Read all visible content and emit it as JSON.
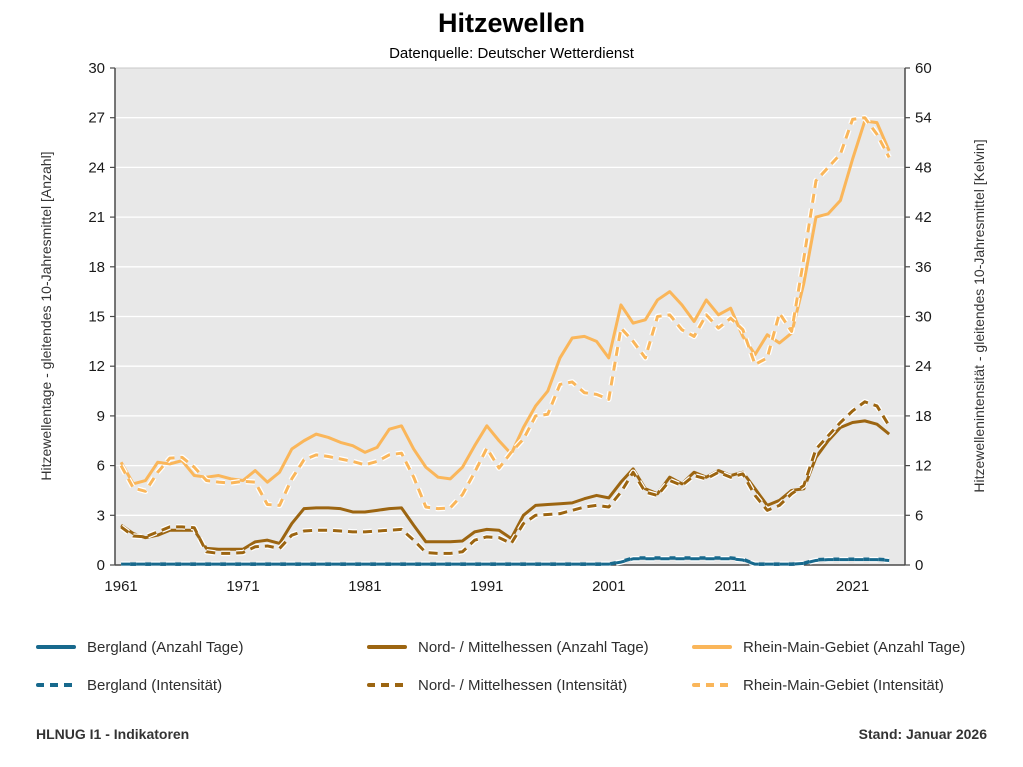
{
  "title": "Hitzewellen",
  "subtitle": "Datenquelle: Deutscher Wetterdienst",
  "footer": {
    "left": "HLNUG I1 - Indikatoren",
    "right": "Stand: Januar 2026"
  },
  "colors": {
    "bergland": "#17698d",
    "nordmittelhessen": "#9c6511",
    "rheinmain": "#fab65a",
    "plot_bg": "#e8e8e8",
    "grid": "#ffffff",
    "axis": "#4a4a4a",
    "tick_text": "#1a1a1a"
  },
  "legend": [
    {
      "label": "Bergland (Anzahl Tage)",
      "color": "bergland",
      "style": "solid"
    },
    {
      "label": "Nord- / Mittelhessen (Anzahl Tage)",
      "color": "nordmittelhessen",
      "style": "solid"
    },
    {
      "label": "Rhein-Main-Gebiet (Anzahl Tage)",
      "color": "rheinmain",
      "style": "solid"
    },
    {
      "label": "Bergland (Intensität)",
      "color": "bergland",
      "style": "dashed"
    },
    {
      "label": "Nord- / Mittelhessen (Intensität)",
      "color": "nordmittelhessen",
      "style": "dashed"
    },
    {
      "label": "Rhein-Main-Gebiet (Intensität)",
      "color": "rheinmain",
      "style": "dashed"
    }
  ],
  "chart_data": {
    "type": "line",
    "title": "Hitzewellen",
    "subtitle": "Datenquelle: Deutscher Wetterdienst",
    "grid": true,
    "legend_position": "bottom",
    "x_domain": [
      1960.5,
      2025.3
    ],
    "x_axis": {
      "ticks": [
        1961,
        1971,
        1981,
        1991,
        2001,
        2011,
        2021
      ]
    },
    "left_axis": {
      "label": "Hitzewellentage - gleitendes 10-Jahresmittel [Anzahl]",
      "min": 0,
      "max": 30,
      "step": 3,
      "ticks": [
        0,
        3,
        6,
        9,
        12,
        15,
        18,
        21,
        24,
        27,
        30
      ]
    },
    "right_axis": {
      "label": "Hitzewellenintensität - gleitendes 10-Jahresmittel [Kelvin]",
      "min": 0,
      "max": 60,
      "step": 6,
      "ticks": [
        0,
        6,
        12,
        18,
        24,
        30,
        36,
        42,
        48,
        54,
        60
      ]
    },
    "years": [
      1961,
      1962,
      1963,
      1964,
      1965,
      1966,
      1967,
      1968,
      1969,
      1970,
      1971,
      1972,
      1973,
      1974,
      1975,
      1976,
      1977,
      1978,
      1979,
      1980,
      1981,
      1982,
      1983,
      1984,
      1985,
      1986,
      1987,
      1988,
      1989,
      1990,
      1991,
      1992,
      1993,
      1994,
      1995,
      1996,
      1997,
      1998,
      1999,
      2000,
      2001,
      2002,
      2003,
      2004,
      2005,
      2006,
      2007,
      2008,
      2009,
      2010,
      2011,
      2012,
      2013,
      2014,
      2015,
      2016,
      2017,
      2018,
      2019,
      2020,
      2021,
      2022,
      2023,
      2024
    ],
    "series": [
      {
        "name": "Bergland (Anzahl Tage)",
        "axis": "left",
        "style": "solid",
        "color": "bergland",
        "width": 3.5,
        "values": [
          0.05,
          0.05,
          0.05,
          0.05,
          0.05,
          0.05,
          0.05,
          0.05,
          0.05,
          0.05,
          0.05,
          0.05,
          0.05,
          0.05,
          0.05,
          0.05,
          0.05,
          0.05,
          0.05,
          0.05,
          0.05,
          0.05,
          0.05,
          0.05,
          0.05,
          0.05,
          0.05,
          0.05,
          0.05,
          0.05,
          0.05,
          0.05,
          0.05,
          0.05,
          0.05,
          0.05,
          0.05,
          0.05,
          0.05,
          0.05,
          0.05,
          0.2,
          0.42,
          0.42,
          0.42,
          0.42,
          0.42,
          0.42,
          0.42,
          0.42,
          0.42,
          0.35,
          0.05,
          0.05,
          0.05,
          0.05,
          0.1,
          0.32,
          0.35,
          0.35,
          0.35,
          0.35,
          0.35,
          0.3
        ]
      },
      {
        "name": "Nord- / Mittelhessen (Anzahl Tage)",
        "axis": "left",
        "style": "solid",
        "color": "nordmittelhessen",
        "width": 3,
        "values": [
          2.4,
          1.9,
          1.65,
          1.8,
          2.1,
          2.1,
          2.1,
          1.0,
          0.95,
          0.95,
          0.95,
          1.4,
          1.5,
          1.3,
          2.5,
          3.4,
          3.45,
          3.45,
          3.4,
          3.2,
          3.2,
          3.3,
          3.4,
          3.45,
          2.4,
          1.4,
          1.4,
          1.4,
          1.45,
          2.0,
          2.15,
          2.1,
          1.6,
          3.0,
          3.6,
          3.65,
          3.7,
          3.75,
          4.0,
          4.2,
          4.05,
          5.0,
          5.8,
          4.6,
          4.3,
          5.3,
          4.9,
          5.6,
          5.3,
          5.7,
          5.4,
          5.6,
          4.6,
          3.6,
          3.9,
          4.5,
          4.6,
          6.5,
          7.5,
          8.3,
          8.6,
          8.7,
          8.5,
          7.9
        ]
      },
      {
        "name": "Rhein-Main-Gebiet (Anzahl Tage)",
        "axis": "left",
        "style": "solid",
        "color": "rheinmain",
        "width": 3,
        "values": [
          6.2,
          4.9,
          5.1,
          6.2,
          6.1,
          6.3,
          5.4,
          5.3,
          5.4,
          5.2,
          5.1,
          5.7,
          5.0,
          5.6,
          7.0,
          7.5,
          7.9,
          7.7,
          7.4,
          7.2,
          6.8,
          7.1,
          8.2,
          8.4,
          7.0,
          5.9,
          5.3,
          5.2,
          5.9,
          7.2,
          8.4,
          7.5,
          6.7,
          8.3,
          9.6,
          10.5,
          12.5,
          13.7,
          13.8,
          13.5,
          12.5,
          15.7,
          14.6,
          14.8,
          16.0,
          16.5,
          15.7,
          14.7,
          16.0,
          15.1,
          15.5,
          13.8,
          12.7,
          13.9,
          13.4,
          14.0,
          17.0,
          21.0,
          21.2,
          22.0,
          24.5,
          26.8,
          26.7,
          25.0
        ]
      },
      {
        "name": "Bergland (Intensität)",
        "axis": "right",
        "style": "dashed",
        "color": "bergland",
        "width": 3,
        "values": [
          0.1,
          0.1,
          0.1,
          0.1,
          0.1,
          0.1,
          0.1,
          0.1,
          0.1,
          0.1,
          0.1,
          0.1,
          0.1,
          0.1,
          0.1,
          0.1,
          0.1,
          0.1,
          0.1,
          0.1,
          0.1,
          0.1,
          0.1,
          0.1,
          0.1,
          0.1,
          0.1,
          0.1,
          0.1,
          0.1,
          0.1,
          0.1,
          0.1,
          0.1,
          0.1,
          0.1,
          0.1,
          0.1,
          0.1,
          0.1,
          0.1,
          0.35,
          0.75,
          0.75,
          0.75,
          0.75,
          0.75,
          0.75,
          0.75,
          0.75,
          0.75,
          0.6,
          0.1,
          0.1,
          0.1,
          0.1,
          0.2,
          0.55,
          0.65,
          0.65,
          0.65,
          0.65,
          0.65,
          0.55
        ]
      },
      {
        "name": "Nord- / Mittelhessen (Intensität)",
        "axis": "right",
        "style": "dashed",
        "color": "nordmittelhessen",
        "width": 3,
        "values": [
          4.6,
          3.5,
          3.4,
          4.0,
          4.6,
          4.6,
          4.5,
          1.6,
          1.4,
          1.4,
          1.5,
          2.2,
          2.3,
          2.0,
          3.6,
          4.1,
          4.2,
          4.2,
          4.1,
          4.0,
          4.0,
          4.1,
          4.2,
          4.3,
          3.0,
          1.5,
          1.4,
          1.4,
          1.6,
          3.0,
          3.4,
          3.3,
          2.6,
          5.0,
          6.0,
          6.1,
          6.2,
          6.6,
          7.0,
          7.2,
          7.0,
          8.8,
          11.2,
          8.8,
          8.4,
          10.2,
          9.6,
          10.8,
          10.4,
          11.2,
          10.6,
          11.0,
          8.4,
          6.6,
          7.2,
          8.6,
          9.6,
          14.0,
          15.6,
          17.2,
          18.6,
          19.7,
          19.2,
          16.8
        ]
      },
      {
        "name": "Rhein-Main-Gebiet (Intensität)",
        "axis": "right",
        "style": "dashed",
        "color": "rheinmain",
        "width": 3,
        "values": [
          12.0,
          9.3,
          8.9,
          11.2,
          12.9,
          13.0,
          11.8,
          10.2,
          10.0,
          9.9,
          10.1,
          10.0,
          7.3,
          7.2,
          10.4,
          12.7,
          13.3,
          13.1,
          12.8,
          12.5,
          12.1,
          12.5,
          13.3,
          13.5,
          10.6,
          7.0,
          6.8,
          6.9,
          8.5,
          11.2,
          14.1,
          11.7,
          13.6,
          15.2,
          18.0,
          18.2,
          21.8,
          22.1,
          20.8,
          20.6,
          20.0,
          28.6,
          27.0,
          25.0,
          30.0,
          30.2,
          28.4,
          27.6,
          30.2,
          28.6,
          29.8,
          28.4,
          24.2,
          25.0,
          30.4,
          28.2,
          37.0,
          46.4,
          48.0,
          49.6,
          53.8,
          54.0,
          52.0,
          49.2
        ]
      }
    ]
  }
}
